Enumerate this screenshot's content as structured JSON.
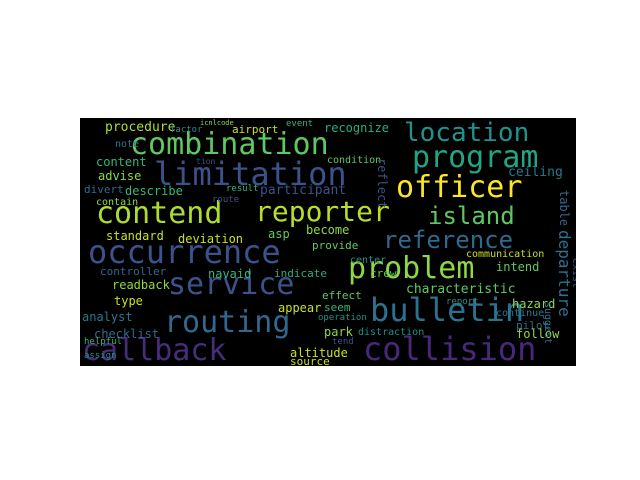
{
  "word_cloud": {
    "background": "#000000",
    "words": [
      {
        "text": "combination",
        "color": "#5ec962"
      },
      {
        "text": "limitation",
        "color": "#3b528b"
      },
      {
        "text": "location",
        "color": "#21918c"
      },
      {
        "text": "program",
        "color": "#21a585"
      },
      {
        "text": "officer",
        "color": "#fde725"
      },
      {
        "text": "contend",
        "color": "#addc30"
      },
      {
        "text": "reporter",
        "color": "#bade28"
      },
      {
        "text": "island",
        "color": "#5ec962"
      },
      {
        "text": "occurrence",
        "color": "#3b528b"
      },
      {
        "text": "reference",
        "color": "#31688e"
      },
      {
        "text": "problem",
        "color": "#8fd744"
      },
      {
        "text": "service",
        "color": "#3b528b"
      },
      {
        "text": "bulletin",
        "color": "#2c728e"
      },
      {
        "text": "routing",
        "color": "#31688e"
      },
      {
        "text": "callback",
        "color": "#472d7b"
      },
      {
        "text": "collision",
        "color": "#482878"
      },
      {
        "text": "procedure",
        "color": "#addc30"
      },
      {
        "text": "airport",
        "color": "#c8e020"
      },
      {
        "text": "recognize",
        "color": "#28ae80"
      },
      {
        "text": "condition",
        "color": "#5ec962"
      },
      {
        "text": "ceiling",
        "color": "#2a788e"
      },
      {
        "text": "describe",
        "color": "#35b779"
      },
      {
        "text": "participant",
        "color": "#3b528b"
      },
      {
        "text": "advise",
        "color": "#8fd744"
      },
      {
        "text": "divert",
        "color": "#31688e"
      },
      {
        "text": "contain",
        "color": "#8fd744"
      },
      {
        "text": "content",
        "color": "#35b779"
      },
      {
        "text": "note",
        "color": "#2c728e"
      },
      {
        "text": "standard",
        "color": "#c8e020"
      },
      {
        "text": "deviation",
        "color": "#c8e020"
      },
      {
        "text": "asp",
        "color": "#5ec962"
      },
      {
        "text": "become",
        "color": "#8fd744"
      },
      {
        "text": "provide",
        "color": "#5ec962"
      },
      {
        "text": "controller",
        "color": "#31688e"
      },
      {
        "text": "navaid",
        "color": "#35b779"
      },
      {
        "text": "indicate",
        "color": "#28ae80"
      },
      {
        "text": "center",
        "color": "#21918c"
      },
      {
        "text": "crew",
        "color": "#5ec962"
      },
      {
        "text": "intend",
        "color": "#5ec962"
      },
      {
        "text": "communication",
        "color": "#c8e020"
      },
      {
        "text": "readback",
        "color": "#8fd744"
      },
      {
        "text": "characteristic",
        "color": "#5ec962"
      },
      {
        "text": "type",
        "color": "#c8e020"
      },
      {
        "text": "analyst",
        "color": "#2a788e"
      },
      {
        "text": "effect",
        "color": "#5ec962"
      },
      {
        "text": "appear",
        "color": "#c8e020"
      },
      {
        "text": "seem",
        "color": "#35b779"
      },
      {
        "text": "hazard",
        "color": "#8fd744"
      },
      {
        "text": "continue",
        "color": "#2a788e"
      },
      {
        "text": "report",
        "color": "#21918c"
      },
      {
        "text": "pilot",
        "color": "#31688e"
      },
      {
        "text": "checklist",
        "color": "#31688e"
      },
      {
        "text": "park",
        "color": "#8fd744"
      },
      {
        "text": "distraction",
        "color": "#21918c"
      },
      {
        "text": "follow",
        "color": "#8fd744"
      },
      {
        "text": "tend",
        "color": "#3b528b"
      },
      {
        "text": "altitude",
        "color": "#c8e020"
      },
      {
        "text": "source",
        "color": "#c8e020"
      },
      {
        "text": "helpful",
        "color": "#35b779"
      },
      {
        "text": "assign",
        "color": "#21918c"
      },
      {
        "text": "factor",
        "color": "#21918c"
      },
      {
        "text": "event",
        "color": "#35b779"
      },
      {
        "text": "result",
        "color": "#35b779"
      },
      {
        "text": "route",
        "color": "#3b528b"
      },
      {
        "text": "suggest",
        "color": "#2c728e"
      },
      {
        "text": "departure",
        "color": "#2c728e"
      },
      {
        "text": "table",
        "color": "#31688e"
      },
      {
        "text": "reflect",
        "color": "#3b528b"
      },
      {
        "text": "exist",
        "color": "#3b528b"
      },
      {
        "text": "operation",
        "color": "#21918c"
      },
      {
        "text": "icnlcode",
        "color": "#8fd744"
      },
      {
        "text": "tion",
        "color": "#3b528b"
      }
    ]
  }
}
